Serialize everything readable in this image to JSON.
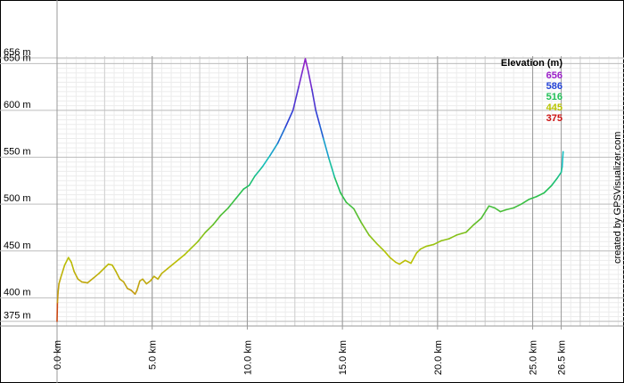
{
  "chart_data": {
    "type": "line",
    "title": "",
    "xlabel": "",
    "ylabel": "",
    "x_unit": "km",
    "y_unit": "m",
    "xlim": [
      0,
      29.8
    ],
    "ylim": [
      370,
      656
    ],
    "grid": true,
    "y_ticks": [
      {
        "value": 375,
        "label": "375 m"
      },
      {
        "value": 400,
        "label": "400 m"
      },
      {
        "value": 450,
        "label": "450 m"
      },
      {
        "value": 500,
        "label": "500 m"
      },
      {
        "value": 550,
        "label": "550 m"
      },
      {
        "value": 600,
        "label": "600 m"
      },
      {
        "value": 650,
        "label": "650 m"
      },
      {
        "value": 656,
        "label": "656 m"
      }
    ],
    "x_ticks": [
      {
        "value": 0.0,
        "label": "0.0 km"
      },
      {
        "value": 5.0,
        "label": "5.0 km"
      },
      {
        "value": 10.0,
        "label": "10.0 km"
      },
      {
        "value": 15.0,
        "label": "15.0 km"
      },
      {
        "value": 20.0,
        "label": "20.0 km"
      },
      {
        "value": 25.0,
        "label": "25.0 km"
      },
      {
        "value": 26.5,
        "label": "26.5 km"
      }
    ],
    "legend": {
      "title": "Elevation (m)",
      "placement": "top-right",
      "entries": [
        {
          "label": "656",
          "color": "#9b1fc9"
        },
        {
          "label": "586",
          "color": "#2343d6"
        },
        {
          "label": "516",
          "color": "#1fbf55"
        },
        {
          "label": "445",
          "color": "#b8c400"
        },
        {
          "label": "375",
          "color": "#cc1111"
        }
      ]
    },
    "series": [
      {
        "x": [
          0.0,
          0.02,
          0.05,
          0.1,
          0.2,
          0.4,
          0.6,
          0.75,
          0.9,
          1.1,
          1.3,
          1.6,
          1.9,
          2.2,
          2.5,
          2.7,
          2.9,
          3.1,
          3.3,
          3.5,
          3.7,
          3.9,
          4.1,
          4.2,
          4.35,
          4.5,
          4.7,
          4.9,
          5.1,
          5.3,
          5.5,
          5.8,
          6.1,
          6.4,
          6.7,
          7.0,
          7.4,
          7.8,
          8.2,
          8.6,
          9.0,
          9.4,
          9.8,
          10.1,
          10.4,
          10.8,
          11.2,
          11.6,
          12.0,
          12.4,
          12.7,
          12.9,
          13.05,
          13.2,
          13.4,
          13.6,
          13.8,
          14.0,
          14.3,
          14.6,
          14.9,
          15.2,
          15.6,
          16.0,
          16.4,
          16.8,
          17.2,
          17.5,
          17.8,
          18.0,
          18.3,
          18.6,
          18.9,
          19.1,
          19.4,
          19.8,
          20.2,
          20.6,
          21.0,
          21.5,
          21.9,
          22.3,
          22.7,
          23.0,
          23.3,
          23.6,
          24.0,
          24.4,
          24.8,
          25.2,
          25.6,
          26.0,
          26.3,
          26.5,
          26.55,
          26.6
        ],
        "y": [
          375,
          395,
          405,
          415,
          422,
          435,
          443,
          438,
          428,
          420,
          417,
          416,
          421,
          426,
          432,
          436,
          435,
          428,
          420,
          417,
          410,
          408,
          404,
          408,
          418,
          420,
          415,
          418,
          423,
          420,
          426,
          431,
          436,
          441,
          446,
          452,
          460,
          470,
          478,
          488,
          496,
          506,
          516,
          520,
          530,
          540,
          552,
          565,
          582,
          600,
          625,
          642,
          655,
          642,
          622,
          600,
          585,
          570,
          548,
          528,
          512,
          502,
          495,
          480,
          467,
          458,
          450,
          443,
          438,
          436,
          440,
          437,
          448,
          452,
          455,
          457,
          461,
          463,
          467,
          470,
          478,
          485,
          498,
          496,
          492,
          494,
          496,
          500,
          505,
          508,
          512,
          520,
          528,
          534,
          540,
          556
        ]
      }
    ]
  },
  "credit": "created by GPSVisualizer.com"
}
